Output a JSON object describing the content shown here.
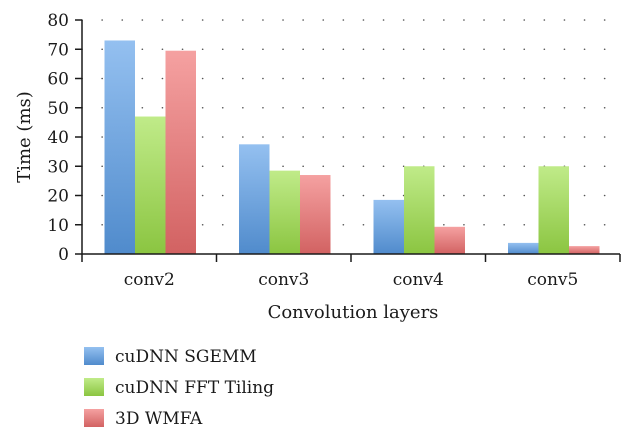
{
  "chart_data": {
    "type": "bar",
    "categories": [
      "conv2",
      "conv3",
      "conv4",
      "conv5"
    ],
    "series": [
      {
        "name": "cuDNN SGEMM",
        "values": [
          73,
          37.5,
          18.5,
          3.8
        ],
        "color": "#5b9ee8"
      },
      {
        "name": "cuDNN FFT Tiling",
        "values": [
          47,
          28.5,
          30,
          30
        ],
        "color": "#9ee04a"
      },
      {
        "name": "3D WMFA",
        "values": [
          69.5,
          27,
          9.3,
          2.7
        ],
        "color": "#ef6f6f"
      }
    ],
    "xlabel": "Convolution layers",
    "ylabel": "Time (ms)",
    "ylim": [
      0,
      80
    ],
    "yticks": [
      0,
      10,
      20,
      30,
      40,
      50,
      60,
      70,
      80
    ],
    "grid": "horizontal-dotted",
    "legend_position": "bottom-left"
  }
}
